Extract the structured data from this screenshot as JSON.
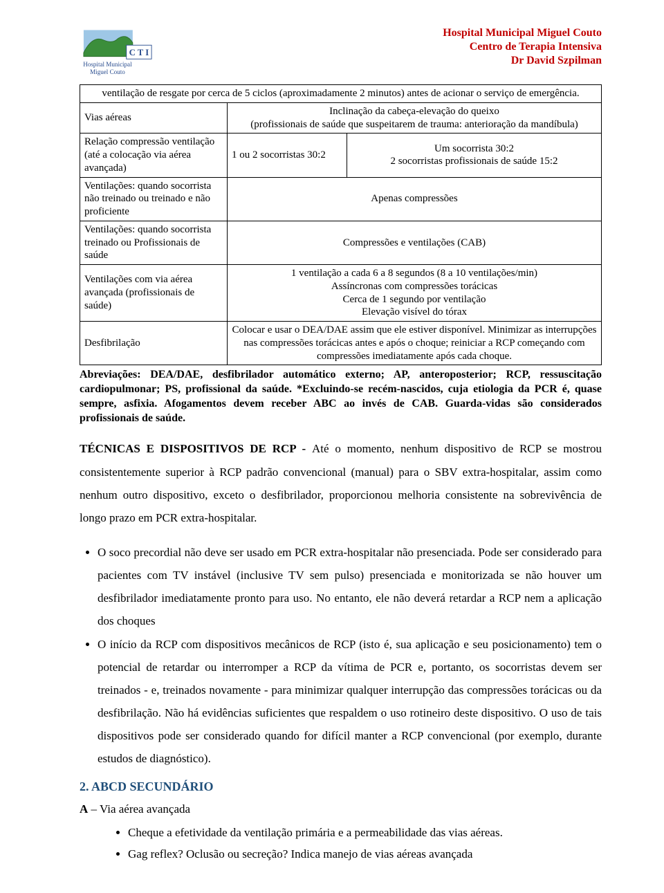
{
  "institution": {
    "line1": "Hospital Municipal Miguel Couto",
    "line2": "Centro de Terapia Intensiva",
    "line3": "Dr David Szpilman",
    "color": "#c00000"
  },
  "logo": {
    "mountain_fill": "#3b8e3b",
    "mountain_stroke": "#2d6e2d",
    "sky": "#9ec7e6",
    "text1": "Hospital Municipal",
    "text2": "Miguel Couto",
    "cti": "C T I",
    "text_fill": "#2a4d8f"
  },
  "table": {
    "row_header": "ventilação de resgate por cerca de 5 ciclos (aproximadamente 2 minutos) antes de acionar o serviço de emergência.",
    "rows": [
      {
        "label": "Vias aéreas",
        "value": "Inclinação da cabeça-elevação do queixo\n(profissionais de saúde que suspeitarem de trauma: anterioração da mandíbula)",
        "span": "full-center"
      },
      {
        "label": "Relação compressão ventilação (até a colocação via aérea avançada)",
        "col2": "1 ou 2 socorristas 30:2",
        "col3": "Um socorrista 30:2\n2 socorristas profissionais de saúde 15:2"
      },
      {
        "label": "Ventilações: quando socorrista não treinado ou treinado e não proficiente",
        "value": "Apenas compressões",
        "span": "full-center"
      },
      {
        "label": "Ventilações: quando socorrista treinado ou Profissionais de saúde",
        "value": "Compressões e ventilações (CAB)",
        "span": "full-center"
      },
      {
        "label": "Ventilações com via aérea avançada (profissionais de saúde)",
        "value": "1 ventilação a cada 6 a 8 segundos (8 a 10 ventilações/min)\nAssíncronas com compressões torácicas\nCerca de 1 segundo por ventilação\nElevação visível do tórax",
        "span": "full-center"
      },
      {
        "label": "Desfibrilação",
        "value": "Colocar e usar o DEA/DAE assim que ele estiver disponível. Minimizar as interrupções nas compressões torácicas antes e após o choque; reiniciar a RCP começando com compressões imediatamente após cada choque.",
        "span": "full-center"
      }
    ]
  },
  "abbrev": "Abreviações: DEA/DAE, desfibrilador automático externo; AP, anteroposterior; RCP, ressuscitação cardiopulmonar; PS, profissional da saúde. *Excluindo-se recém-nascidos, cuja etiologia da PCR é, quase sempre, asfixia. Afogamentos devem receber ABC ao invés de CAB. Guarda-vidas são considerados profissionais de saúde.",
  "section_title_lead": "TÉCNICAS E DISPOSITIVOS DE RCP - ",
  "section_body": "Até o momento, nenhum dispositivo de RCP se mostrou consistentemente superior à RCP padrão convencional (manual) para o SBV extra-hospitalar, assim como nenhum outro dispositivo, exceto o desfibrilador, proporcionou melhoria consistente na sobrevivência de longo prazo em PCR extra-hospitalar.",
  "bullets": [
    "O soco precordial não deve ser usado em PCR extra-hospitalar não presenciada. Pode ser considerado para pacientes com TV instável (inclusive TV sem pulso) presenciada e monitorizada se não houver um desfibrilador imediatamente pronto para uso. No entanto, ele não deverá retardar a RCP nem a aplicação dos choques",
    "O início da RCP com dispositivos mecânicos de RCP (isto é, sua aplicação e seu posicionamento) tem o potencial de retardar ou interromper a RCP da vítima de PCR e, portanto, os socorristas devem ser treinados - e, treinados novamente - para minimizar qualquer interrupção das compressões torácicas ou da desfibrilação. Não há evidências suficientes que respaldem o uso rotineiro deste dispositivo. O uso de tais dispositivos pode ser considerado quando for difícil manter a RCP convencional (por exemplo, durante estudos de diagnóstico)."
  ],
  "h2": "2. ABCD SECUNDÁRIO",
  "sub_a_bold": "A",
  "sub_a_text": " – Via aérea avançada",
  "bullets2": [
    "Cheque a efetividade da ventilação primária e a permeabilidade das vias aéreas.",
    "Gag reflex? Oclusão ou secreção? Indica manejo de vias aéreas avançada"
  ]
}
